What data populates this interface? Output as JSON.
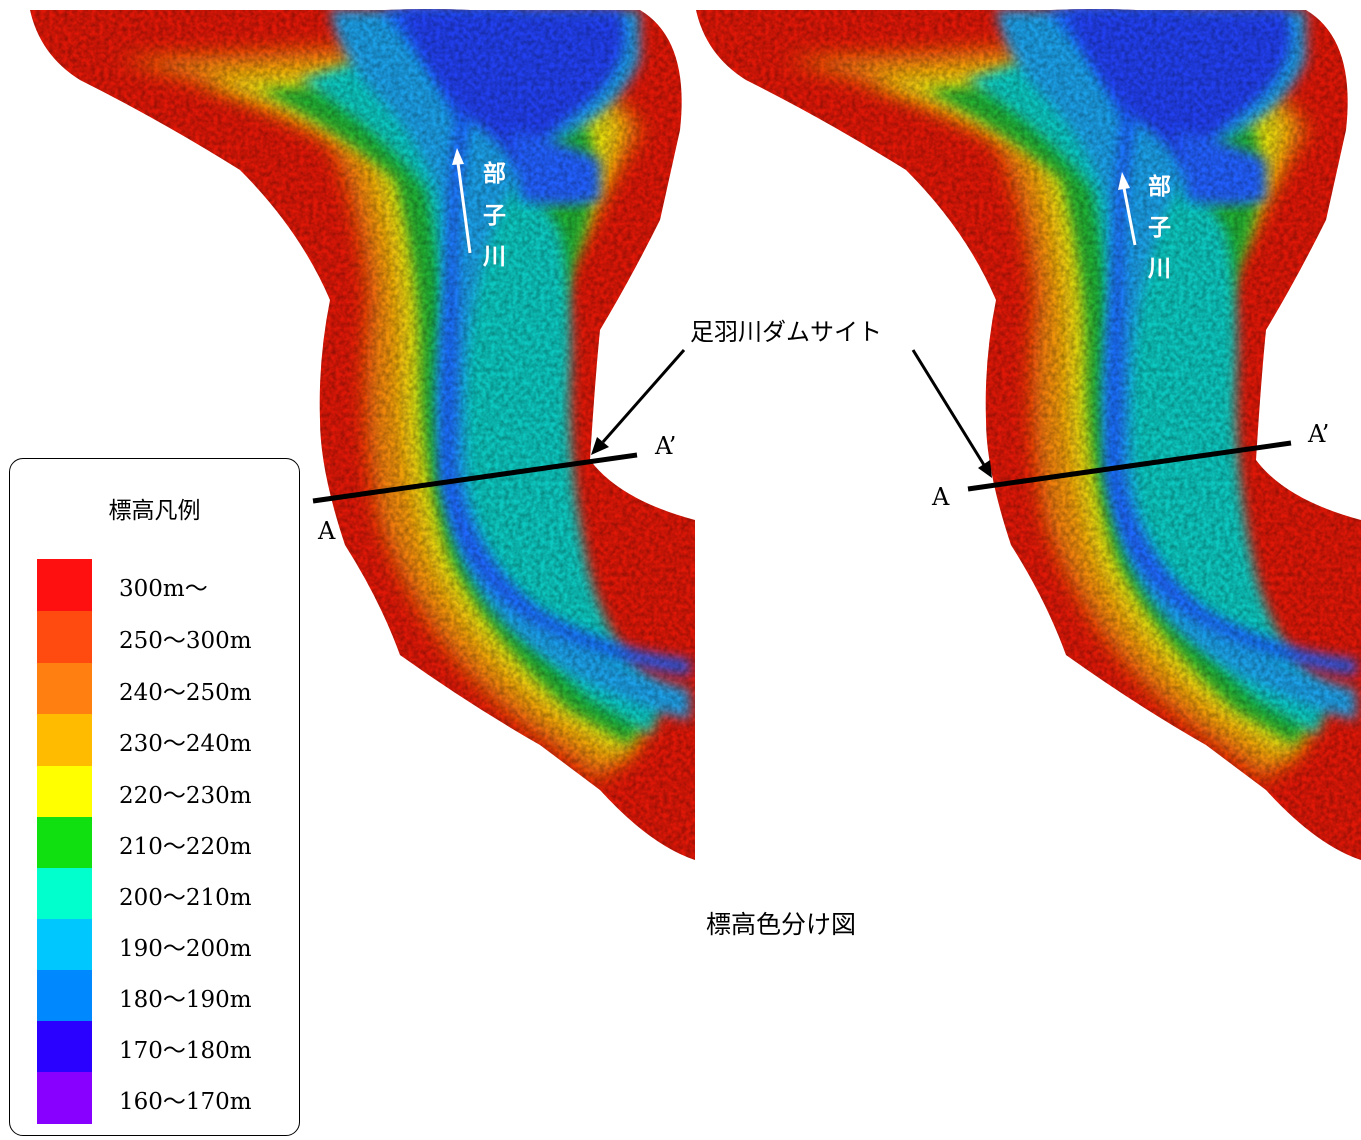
{
  "colors": {
    "e300": "#ff1010",
    "e250": "#ff4a10",
    "e240": "#ff8010",
    "e230": "#ffbb00",
    "e220": "#ffff00",
    "e210": "#10e010",
    "e200": "#00ffcc",
    "e190": "#00c8ff",
    "e180": "#0088ff",
    "e170": "#2a00ff",
    "e160": "#8800ff"
  },
  "river": {
    "chars": [
      "部",
      "子",
      "川"
    ]
  },
  "dam_label": "足羽川ダムサイト",
  "section": {
    "start": "A",
    "end": "A’"
  },
  "caption": "標高色分け図",
  "legend": {
    "title": "標高凡例",
    "items": [
      {
        "label": "300m～",
        "color": "#ff1010"
      },
      {
        "label": "250～300m",
        "color": "#ff4a10"
      },
      {
        "label": "240～250m",
        "color": "#ff8010"
      },
      {
        "label": "230～240m",
        "color": "#ffbb00"
      },
      {
        "label": "220～230m",
        "color": "#ffff00"
      },
      {
        "label": "210～220m",
        "color": "#10e010"
      },
      {
        "label": "200～210m",
        "color": "#00ffcc"
      },
      {
        "label": "190～200m",
        "color": "#00c8ff"
      },
      {
        "label": "180～190m",
        "color": "#0088ff"
      },
      {
        "label": "170～180m",
        "color": "#2a00ff"
      },
      {
        "label": "160～170m",
        "color": "#8800ff"
      }
    ]
  }
}
